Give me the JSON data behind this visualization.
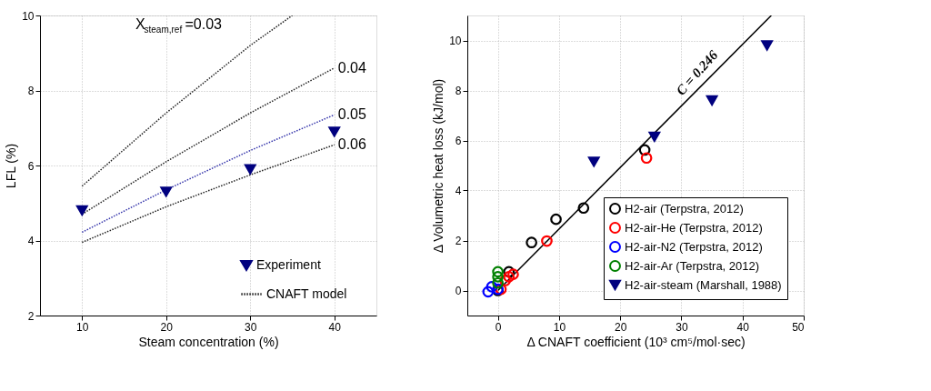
{
  "chart_data": [
    {
      "type": "line",
      "xlabel": "Steam concentration (%)",
      "ylabel": "LFL (%)",
      "xlim": [
        5,
        45
      ],
      "xticks": [
        10,
        20,
        30,
        40
      ],
      "ylim": [
        2,
        10
      ],
      "yticks": [
        2,
        4,
        6,
        8,
        10
      ],
      "grid": true,
      "legend": "bottom right",
      "line_style": "dotted",
      "x": [
        10,
        20,
        30,
        40
      ],
      "series": [
        {
          "name": "Experiment",
          "type": "scatter",
          "marker": "triangle",
          "color": "#00007f",
          "values": [
            4.8,
            5.3,
            5.9,
            6.9
          ]
        },
        {
          "name": "CNAFT model",
          "type": "line",
          "color": "#222222",
          "x": [
            10,
            20,
            30,
            35
          ],
          "values": [
            5.45,
            7.4,
            9.2,
            10.0
          ]
        },
        {
          "type": "line",
          "color": "#222222",
          "values": [
            4.7,
            6.1,
            7.4,
            8.6
          ]
        },
        {
          "type": "line",
          "color": "#3333aa",
          "values": [
            4.22,
            5.35,
            6.4,
            7.35
          ]
        },
        {
          "type": "line",
          "color": "#222222",
          "values": [
            3.95,
            4.9,
            5.75,
            6.55
          ]
        }
      ],
      "annotations": [
        "X$_{steam,ref}$=0.03",
        "0.04",
        "0.05",
        "0.06"
      ]
    },
    {
      "type": "scatter",
      "xlabel": "Δ CNAFT coefficient (10³ cm⁵/mol·sec)",
      "ylabel": "Δ Volumetric heat loss (kJ/mol)",
      "xlim": [
        -5,
        50
      ],
      "xticks": [
        0,
        10,
        20,
        30,
        40,
        50
      ],
      "ylim": [
        -1,
        11
      ],
      "yticks": [
        0,
        2,
        4,
        6,
        8,
        10
      ],
      "grid": true,
      "legend": "bottom right",
      "series": [
        {
          "name": "H2-air (Terpstra, 2012)",
          "marker": "circle",
          "color": "#000000",
          "x": [
            0,
            1.8,
            5.5,
            9.5,
            14,
            24
          ],
          "values": [
            0,
            0.75,
            1.92,
            2.85,
            3.3,
            5.62
          ]
        },
        {
          "name": "H2-air-He (Terpstra, 2012)",
          "marker": "circle",
          "color": "#ff0000",
          "x": [
            0.5,
            1.2,
            1.8,
            2.5,
            8,
            24.3
          ],
          "values": [
            0.05,
            0.4,
            0.55,
            0.65,
            1.98,
            5.3
          ]
        },
        {
          "name": "H2-air-N2 (Terpstra, 2012)",
          "marker": "circle",
          "color": "#0000ff",
          "x": [
            -1.6,
            -1,
            0
          ],
          "values": [
            -0.05,
            0.15,
            0.05
          ]
        },
        {
          "name": "H2-air-Ar (Terpstra, 2012)",
          "marker": "circle",
          "color": "#008000",
          "x": [
            0,
            0,
            0
          ],
          "values": [
            0.75,
            0.55,
            0.3
          ]
        },
        {
          "name": "H2-air-steam (Marshall, 1988)",
          "marker": "triangle",
          "color": "#00007f",
          "x": [
            15.7,
            25.6,
            35,
            44
          ],
          "values": [
            5.15,
            6.15,
            7.6,
            9.8
          ]
        },
        {
          "name": "C = 0.246",
          "type": "line",
          "line_style": "solid",
          "color": "#000000",
          "x": [
            0,
            44.7
          ],
          "values": [
            0,
            11.0
          ]
        }
      ]
    }
  ]
}
